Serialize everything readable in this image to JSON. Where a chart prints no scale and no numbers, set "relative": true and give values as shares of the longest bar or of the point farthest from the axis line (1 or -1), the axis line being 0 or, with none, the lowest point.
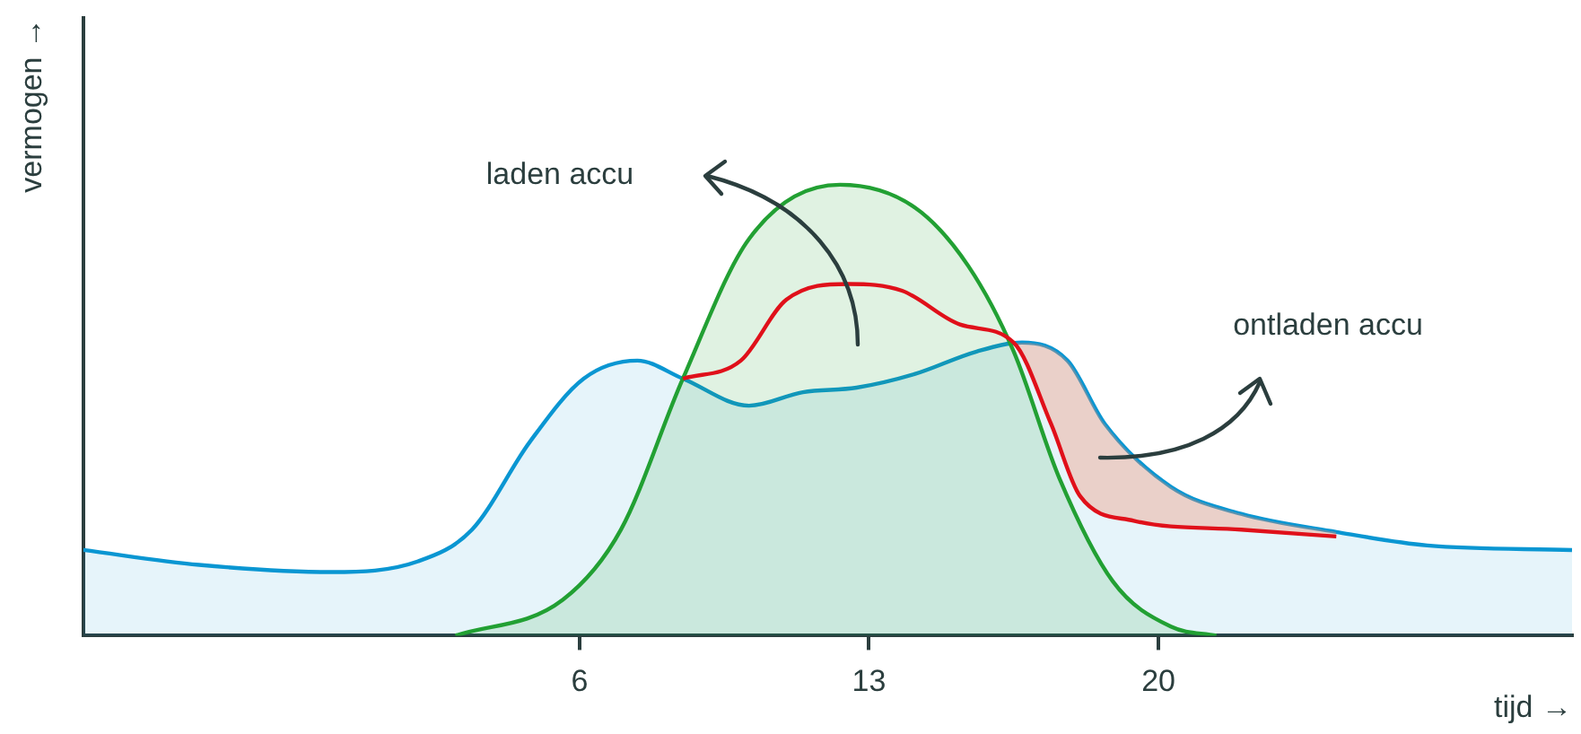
{
  "chart_data": {
    "type": "area",
    "relative": true,
    "xlabel": "tijd →",
    "ylabel": "vermogen →",
    "xlim": [
      -6,
      30
    ],
    "xticks": [
      6,
      13,
      20
    ],
    "grid": false,
    "legend": false,
    "annotations": [
      "laden accu",
      "ontladen accu"
    ],
    "series": [
      {
        "type": "area",
        "color": "#0a96d2",
        "x": [
          -6,
          -3.2,
          0,
          2.1,
          3.4,
          4.8,
          6.1,
          7.4,
          8.5,
          10.1,
          11.4,
          12.7,
          14.1,
          15.6,
          16.7,
          17.8,
          18.7,
          20.3,
          22,
          24.3,
          26.5,
          30
        ],
        "values": [
          0.19,
          0.157,
          0.141,
          0.165,
          0.235,
          0.43,
          0.57,
          0.61,
          0.57,
          0.51,
          0.54,
          0.55,
          0.58,
          0.63,
          0.65,
          0.61,
          0.47,
          0.33,
          0.27,
          0.23,
          0.2,
          0.19
        ]
      },
      {
        "type": "area",
        "color": "#22a033",
        "x": [
          3,
          5.6,
          7,
          8.5,
          10.1,
          12.3,
          14.1,
          15.4,
          16.5,
          17.6,
          18.9,
          20.3,
          21.4
        ],
        "values": [
          0,
          0.08,
          0.235,
          0.57,
          0.88,
          1,
          0.95,
          0.82,
          0.63,
          0.35,
          0.12,
          0.02,
          0
        ]
      },
      {
        "type": "line",
        "color": "#e0101a",
        "x": [
          8.5,
          9.9,
          11,
          12.5,
          13.8,
          15.2,
          16.5,
          17.4,
          18.1,
          19.4,
          22,
          24.3
        ],
        "values": [
          0.57,
          0.61,
          0.745,
          0.78,
          0.765,
          0.69,
          0.65,
          0.47,
          0.31,
          0.255,
          0.235,
          0.22
        ]
      }
    ]
  }
}
